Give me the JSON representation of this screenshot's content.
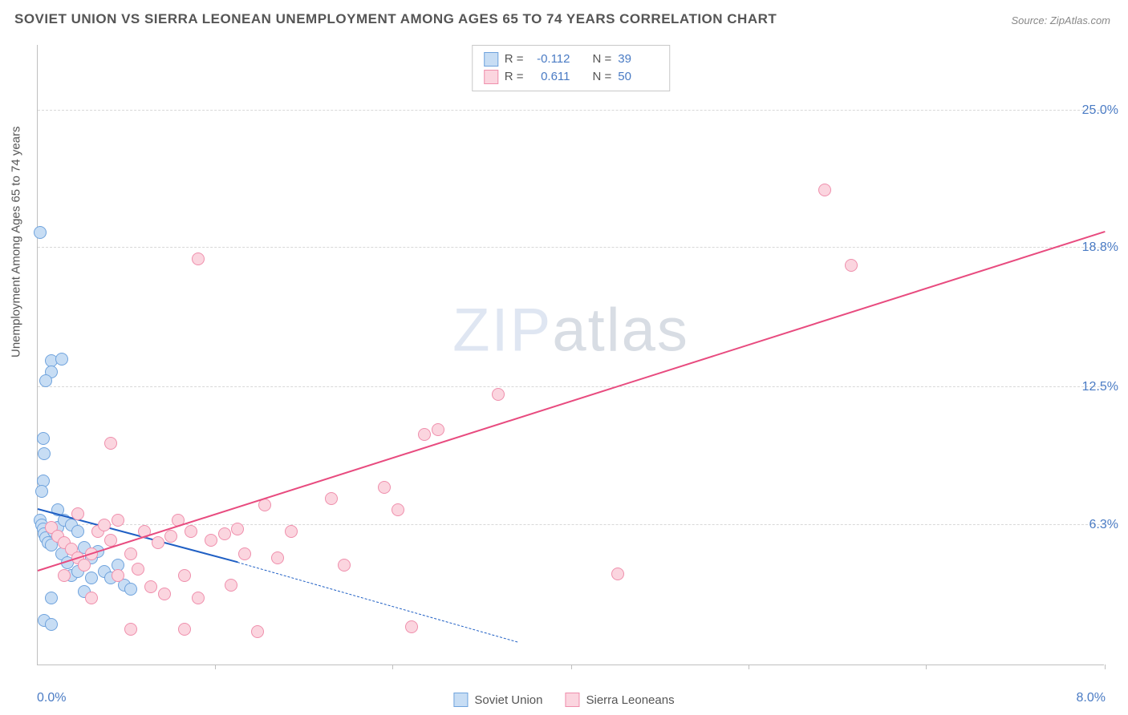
{
  "title": "SOVIET UNION VS SIERRA LEONEAN UNEMPLOYMENT AMONG AGES 65 TO 74 YEARS CORRELATION CHART",
  "source": "Source: ZipAtlas.com",
  "watermark_thin": "ZIP",
  "watermark_bold": "atlas",
  "chart": {
    "type": "scatter",
    "ylabel": "Unemployment Among Ages 65 to 74 years",
    "xlim": [
      0.0,
      8.0
    ],
    "ylim": [
      0.0,
      28.0
    ],
    "x_min_label": "0.0%",
    "x_max_label": "8.0%",
    "y_ticks": [
      {
        "value": 6.3,
        "label": "6.3%"
      },
      {
        "value": 12.5,
        "label": "12.5%"
      },
      {
        "value": 18.8,
        "label": "18.8%"
      },
      {
        "value": 25.0,
        "label": "25.0%"
      }
    ],
    "x_tick_positions": [
      1.33,
      2.66,
      4.0,
      5.33,
      6.66,
      8.0
    ],
    "background_color": "#ffffff",
    "grid_color": "#d8d8d8",
    "axis_color": "#bfbfbf",
    "marker_radius": 8,
    "marker_stroke_width": 1.5,
    "trend_line_width": 2
  },
  "series": [
    {
      "key": "soviet",
      "label": "Soviet Union",
      "fill": "#c7ddf4",
      "stroke": "#6fa3dd",
      "trend_color": "#1f5fc4",
      "r_label": "R =",
      "r_value": "-0.112",
      "n_label": "N =",
      "n_value": "39",
      "trend": {
        "x1": 0.0,
        "y1": 7.0,
        "x2": 1.5,
        "y2": 4.6
      },
      "trend_extrapolate": {
        "x1": 1.5,
        "y1": 4.6,
        "x2": 3.6,
        "y2": 1.0
      },
      "points": [
        [
          0.02,
          19.5
        ],
        [
          0.1,
          13.7
        ],
        [
          0.18,
          13.8
        ],
        [
          0.1,
          13.2
        ],
        [
          0.06,
          12.8
        ],
        [
          0.04,
          10.2
        ],
        [
          0.05,
          9.5
        ],
        [
          0.04,
          8.3
        ],
        [
          0.03,
          7.8
        ],
        [
          0.02,
          6.5
        ],
        [
          0.03,
          6.3
        ],
        [
          0.04,
          6.1
        ],
        [
          0.05,
          5.9
        ],
        [
          0.06,
          5.7
        ],
        [
          0.08,
          5.5
        ],
        [
          0.1,
          5.4
        ],
        [
          0.12,
          6.0
        ],
        [
          0.15,
          6.2
        ],
        [
          0.2,
          6.5
        ],
        [
          0.25,
          6.3
        ],
        [
          0.3,
          6.0
        ],
        [
          0.35,
          5.3
        ],
        [
          0.4,
          4.8
        ],
        [
          0.45,
          5.1
        ],
        [
          0.5,
          4.2
        ],
        [
          0.55,
          3.9
        ],
        [
          0.6,
          4.5
        ],
        [
          0.65,
          3.6
        ],
        [
          0.7,
          3.4
        ],
        [
          0.1,
          3.0
        ],
        [
          0.35,
          3.3
        ],
        [
          0.05,
          2.0
        ],
        [
          0.1,
          1.8
        ],
        [
          0.25,
          4.0
        ],
        [
          0.3,
          4.2
        ],
        [
          0.18,
          5.0
        ],
        [
          0.22,
          4.6
        ],
        [
          0.4,
          3.9
        ],
        [
          0.15,
          7.0
        ]
      ]
    },
    {
      "key": "sierra",
      "label": "Sierra Leoneans",
      "fill": "#fbd5df",
      "stroke": "#ef8fac",
      "trend_color": "#e84b7f",
      "r_label": "R =",
      "r_value": "0.611",
      "n_label": "N =",
      "n_value": "50",
      "trend": {
        "x1": 0.0,
        "y1": 4.2,
        "x2": 8.0,
        "y2": 19.5
      },
      "points": [
        [
          0.1,
          6.2
        ],
        [
          0.15,
          5.8
        ],
        [
          0.2,
          5.5
        ],
        [
          0.25,
          5.2
        ],
        [
          0.3,
          4.8
        ],
        [
          0.35,
          4.5
        ],
        [
          0.4,
          5.0
        ],
        [
          0.45,
          6.0
        ],
        [
          0.5,
          6.3
        ],
        [
          0.55,
          5.6
        ],
        [
          0.6,
          6.5
        ],
        [
          0.55,
          10.0
        ],
        [
          0.7,
          5.0
        ],
        [
          0.75,
          4.3
        ],
        [
          0.8,
          6.0
        ],
        [
          0.85,
          3.5
        ],
        [
          0.9,
          5.5
        ],
        [
          0.95,
          3.2
        ],
        [
          1.0,
          5.8
        ],
        [
          1.05,
          6.5
        ],
        [
          1.15,
          6.0
        ],
        [
          1.2,
          3.0
        ],
        [
          1.3,
          5.6
        ],
        [
          1.4,
          5.9
        ],
        [
          1.5,
          6.1
        ],
        [
          1.55,
          5.0
        ],
        [
          1.7,
          7.2
        ],
        [
          1.8,
          4.8
        ],
        [
          1.9,
          6.0
        ],
        [
          1.2,
          18.3
        ],
        [
          1.65,
          1.5
        ],
        [
          0.7,
          1.6
        ],
        [
          1.1,
          1.6
        ],
        [
          2.2,
          7.5
        ],
        [
          2.6,
          8.0
        ],
        [
          2.7,
          7.0
        ],
        [
          2.8,
          1.7
        ],
        [
          2.9,
          10.4
        ],
        [
          3.0,
          10.6
        ],
        [
          3.45,
          12.2
        ],
        [
          2.3,
          4.5
        ],
        [
          4.35,
          4.1
        ],
        [
          5.9,
          21.4
        ],
        [
          6.1,
          18.0
        ],
        [
          0.4,
          3.0
        ],
        [
          0.3,
          6.8
        ],
        [
          0.2,
          4.0
        ],
        [
          0.6,
          4.0
        ],
        [
          1.1,
          4.0
        ],
        [
          1.45,
          3.6
        ]
      ]
    }
  ],
  "legend": {
    "items": [
      {
        "label": "Soviet Union",
        "fill": "#c7ddf4",
        "stroke": "#6fa3dd"
      },
      {
        "label": "Sierra Leoneans",
        "fill": "#fbd5df",
        "stroke": "#ef8fac"
      }
    ]
  }
}
